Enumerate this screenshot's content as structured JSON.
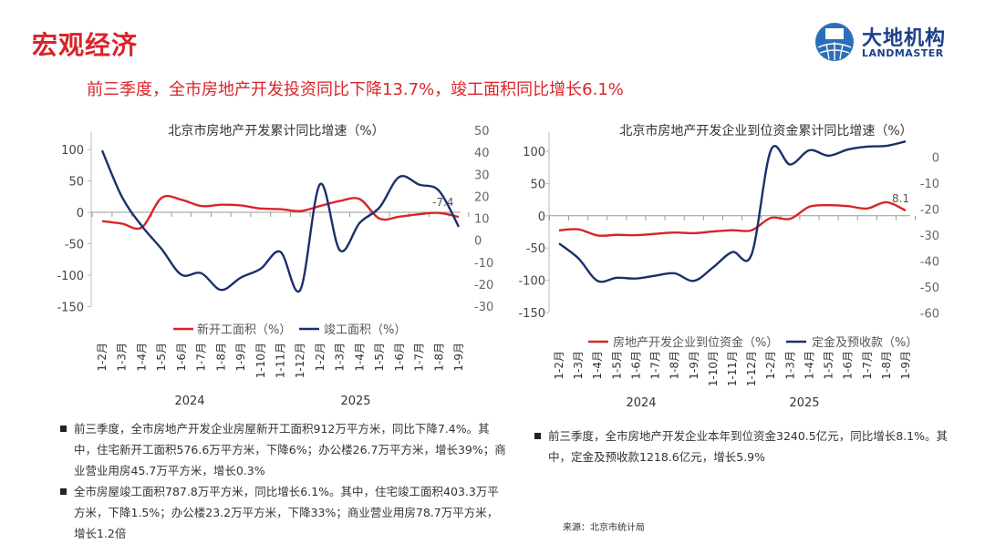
{
  "header": {
    "title": "宏观经济",
    "subtitle": "前三季度，全市房地产开发投资同比下降13.7%，竣工面积同比增长6.1%"
  },
  "logo": {
    "name_cn": "大地机构",
    "name_en": "LANDMASTER",
    "brand_color": "#1c3f8c"
  },
  "chart_data": [
    {
      "type": "line",
      "title": "北京市房地产开发累计同比增速（%）",
      "categories": [
        "1-2月",
        "1-3月",
        "1-4月",
        "1-5月",
        "1-6月",
        "1-7月",
        "1-8月",
        "1-9月",
        "1-10月",
        "1-11月",
        "1-12月",
        "1-2月",
        "1-3月",
        "1-4月",
        "1-5月",
        "1-6月",
        "1-7月",
        "1-8月",
        "1-9月"
      ],
      "year_groups": [
        {
          "label": "2024"
        },
        {
          "label": "2025"
        }
      ],
      "y_left": {
        "ticks": [
          100,
          50,
          0,
          -50,
          -100,
          -150
        ],
        "ylim": [
          -150,
          100
        ]
      },
      "y_right": {
        "ticks": [
          50,
          40,
          30,
          20,
          10,
          0,
          -10,
          -20,
          -30
        ],
        "ylim": [
          -30,
          50
        ]
      },
      "series": [
        {
          "name": "新开工面积（%）",
          "axis": "left",
          "color": "#d8242a",
          "values": [
            -14,
            -18,
            -24,
            23,
            20,
            10,
            12,
            11,
            6,
            5,
            2,
            10,
            18,
            21,
            -10,
            -7,
            -3,
            -1,
            -7.4
          ],
          "end_label": "-7.4"
        },
        {
          "name": "竣工面积（%）",
          "axis": "right",
          "color": "#1b2f6b",
          "values": [
            40.8,
            19.7,
            6.5,
            -4,
            -15.7,
            -15,
            -22.6,
            -17,
            -13,
            -5.3,
            -22.6,
            25.5,
            -4.6,
            7.9,
            14.9,
            28.8,
            25.3,
            22.5,
            6.1
          ]
        }
      ],
      "legend": "bottom",
      "grid": false
    },
    {
      "type": "line",
      "title": "北京市房地产开发企业到位资金累计同比增速（%）",
      "categories": [
        "1-2月",
        "1-3月",
        "1-4月",
        "1-5月",
        "1-6月",
        "1-7月",
        "1-8月",
        "1-9月",
        "1-10月",
        "1-11月",
        "1-12月",
        "1-2月",
        "1-3月",
        "1-4月",
        "1-5月",
        "1-6月",
        "1-7月",
        "1-8月",
        "1-9月"
      ],
      "year_groups": [
        {
          "label": "2024"
        },
        {
          "label": "2025"
        }
      ],
      "y_left": {
        "ticks": [
          100,
          50,
          0,
          -50,
          -100,
          -150
        ],
        "ylim": [
          -150,
          100
        ]
      },
      "y_right": {
        "ticks": [
          0,
          -10,
          -20,
          -30,
          -40,
          -50,
          -60
        ],
        "ylim": [
          -60,
          0
        ]
      },
      "series": [
        {
          "name": "房地产开发企业到位资金（%）",
          "axis": "left",
          "color": "#d8242a",
          "values": [
            -22.6,
            -21,
            -30.5,
            -29.6,
            -30,
            -28,
            -26,
            -27,
            -24.4,
            -22.5,
            -22.5,
            -3.3,
            -4.7,
            14,
            16.4,
            15,
            11.3,
            21,
            8.1
          ],
          "end_label": "8.1"
        },
        {
          "name": "定金及预收款（%）",
          "axis": "right",
          "color": "#1b2f6b",
          "values": [
            -33.3,
            -39,
            -47.7,
            -46.5,
            -46.8,
            -45.7,
            -44.8,
            -47.7,
            -42.5,
            -36.6,
            -37.5,
            2.6,
            -2.9,
            2.6,
            0.5,
            2.9,
            4,
            4.3,
            6
          ]
        }
      ],
      "legend": "bottom",
      "grid": false
    }
  ],
  "notes_left": [
    "前三季度，全市房地产开发企业房屋新开工面积912万平方米，同比下降7.4%。其中，住宅新开工面积576.6万平方米，下降6%；办公楼26.7万平方米，增长39%；商业营业用房45.7万平方米，增长0.3%",
    "全市房屋竣工面积787.8万平方米，同比增长6.1%。其中，住宅竣工面积403.3万平方米，下降1.5%；办公楼23.2万平方米，下降33%；商业营业用房78.7万平方米，增长1.2倍"
  ],
  "notes_right": [
    "前三季度，全市房地产开发企业本年到位资金3240.5亿元，同比增长8.1%。其中，定金及预收款1218.6亿元，增长5.9%"
  ],
  "source": "来源：北京市统计局"
}
